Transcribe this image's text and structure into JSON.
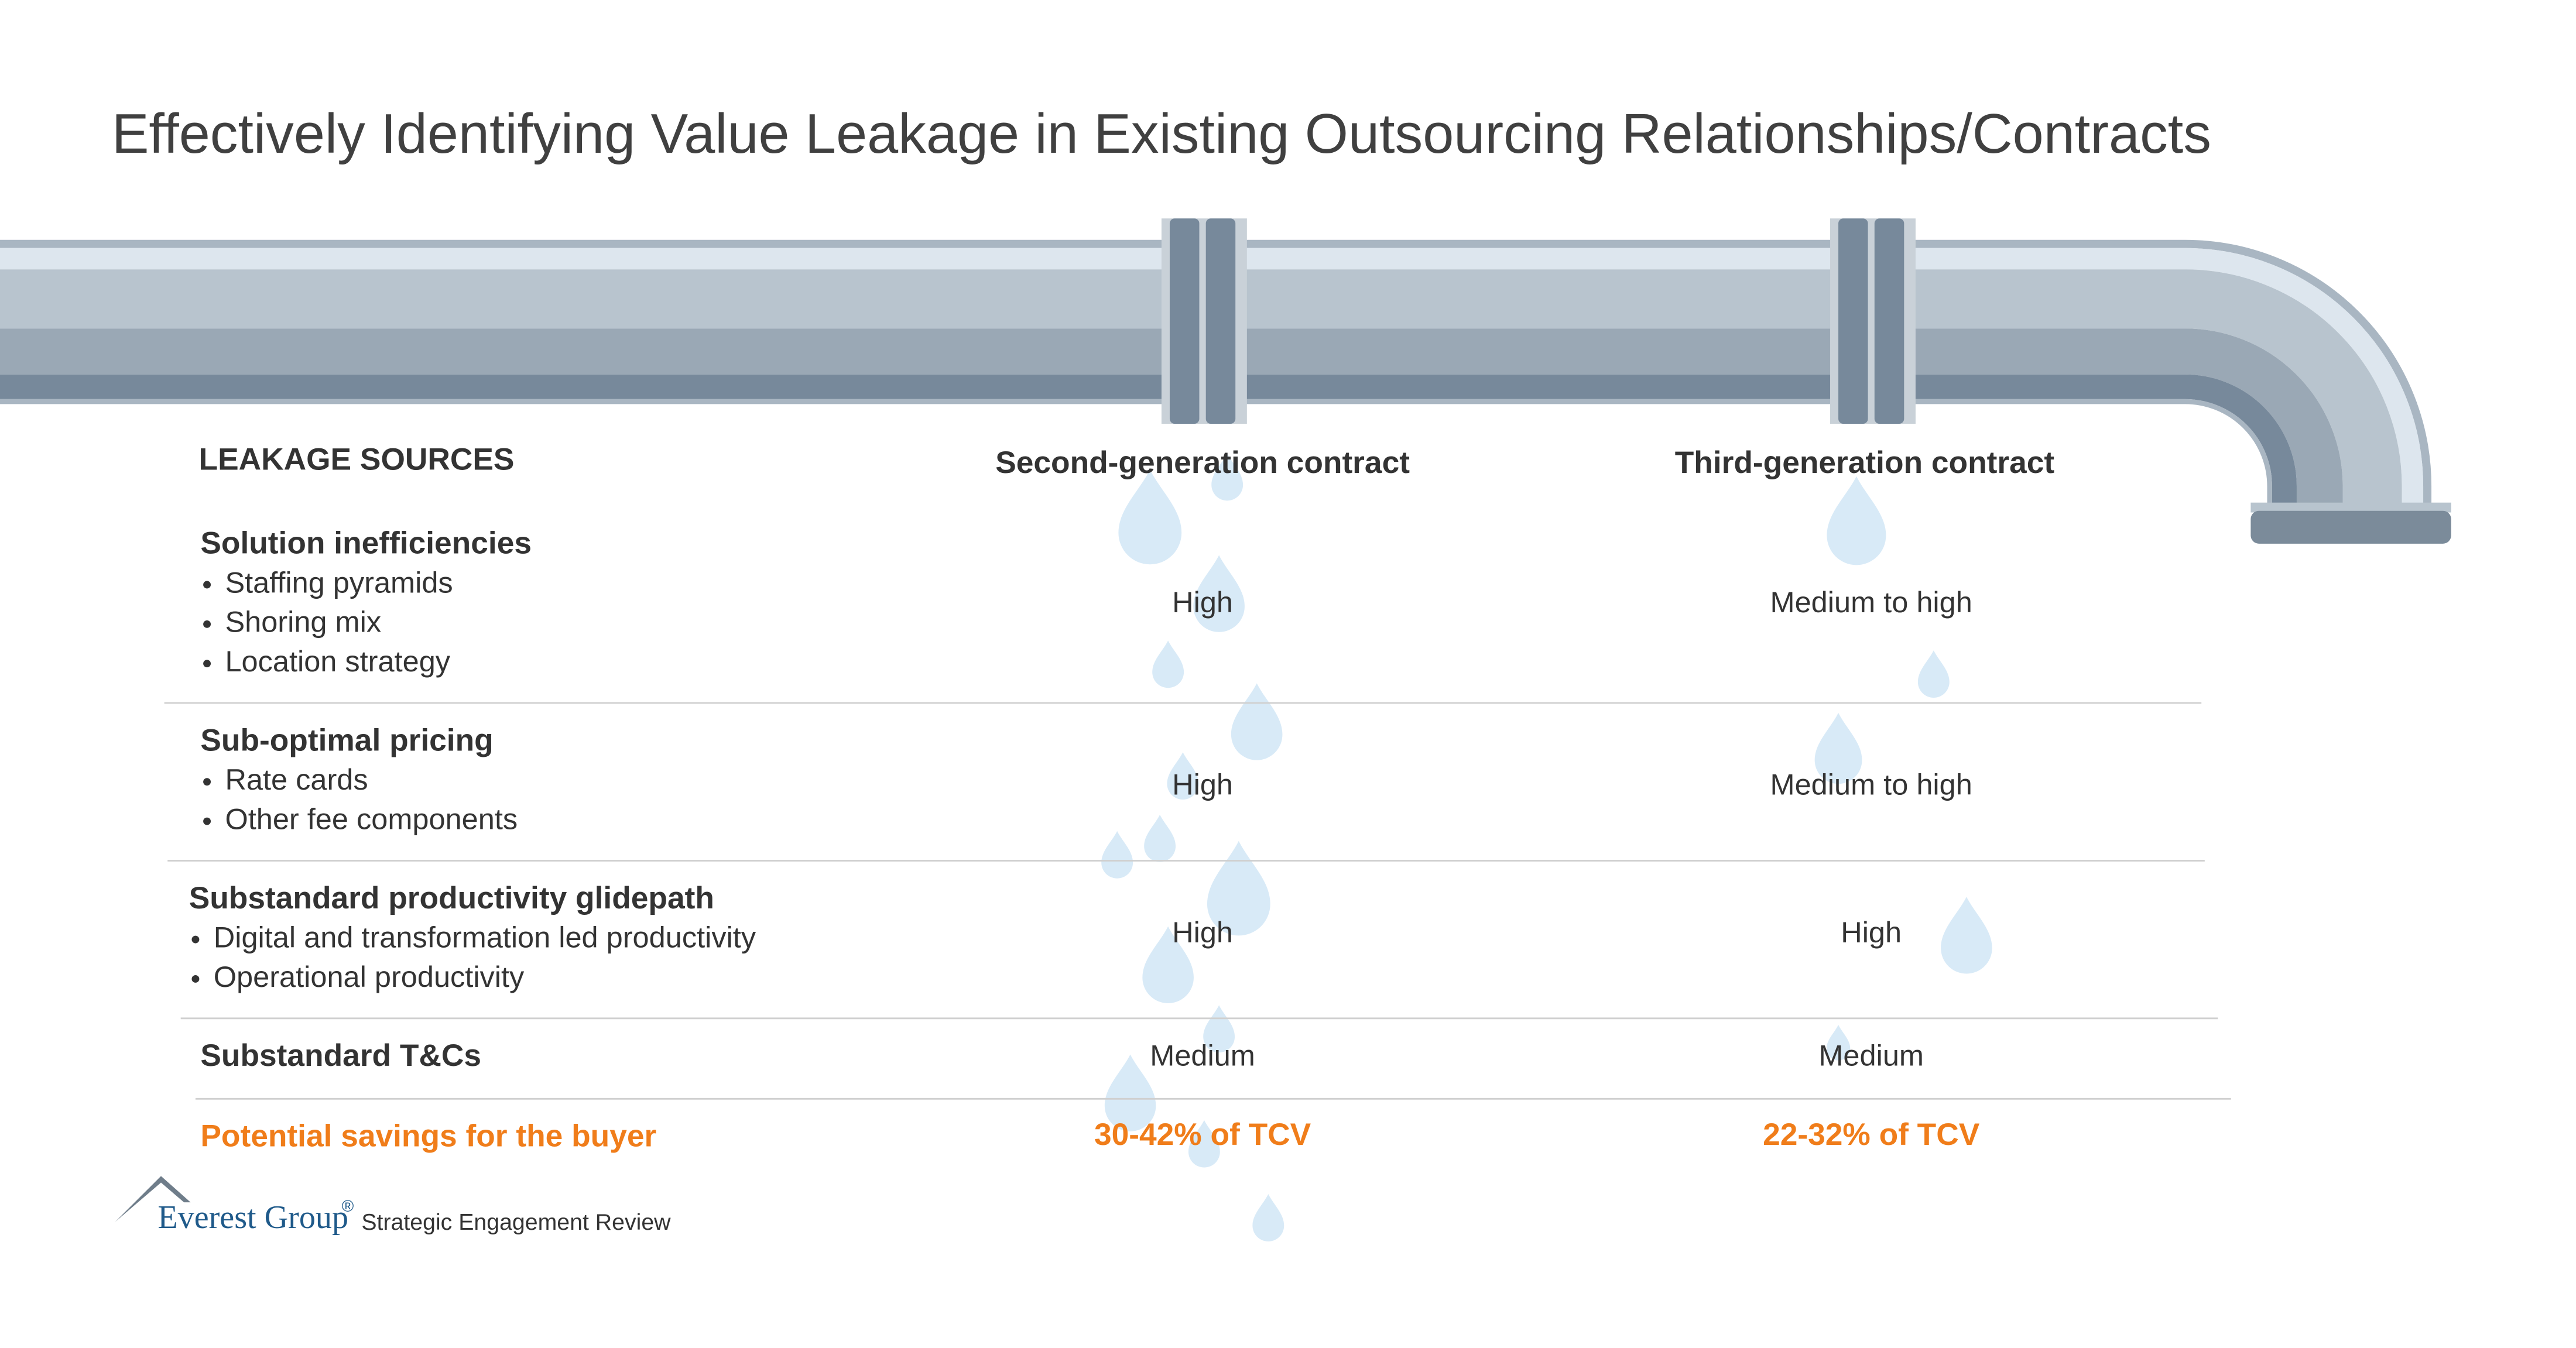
{
  "title": "Effectively Identifying Value Leakage in Existing Outsourcing Relationships/Contracts",
  "table": {
    "header": {
      "label": "LEAKAGE SOURCES",
      "columns": [
        "Second-generation contract",
        "Third-generation contract"
      ]
    },
    "rows": [
      {
        "label": "Solution inefficiencies",
        "bullets": [
          "Staffing pyramids",
          "Shoring mix",
          "Location strategy"
        ],
        "values": [
          "High",
          "Medium to high"
        ]
      },
      {
        "label": "Sub-optimal pricing",
        "bullets": [
          "Rate cards",
          "Other fee components"
        ],
        "values": [
          "High",
          "Medium to high"
        ]
      },
      {
        "label": "Substandard productivity glidepath",
        "bullets": [
          "Digital and transformation led productivity",
          "Operational productivity"
        ],
        "values": [
          "High",
          "High"
        ]
      },
      {
        "label": "Substandard T&Cs",
        "bullets": [],
        "values": [
          "Medium",
          "Medium"
        ]
      }
    ],
    "savings": {
      "label": "Potential savings for the buyer",
      "values": [
        "30-42% of TCV",
        "22-32% of TCV"
      ]
    }
  },
  "footer": {
    "brand": "Everest Group",
    "mark": "®",
    "source": "Strategic Engagement Review"
  }
}
